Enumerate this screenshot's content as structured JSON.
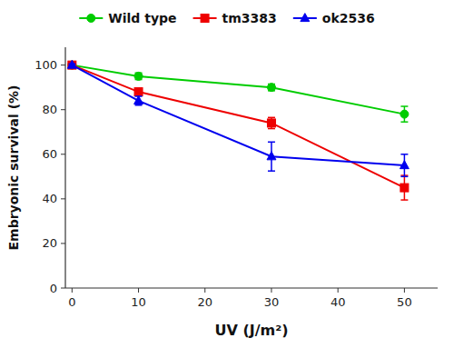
{
  "chart_data": {
    "type": "line",
    "xlabel": "UV (J/m²)",
    "ylabel": "Embryonic survival (%)",
    "x": [
      0,
      10,
      30,
      50
    ],
    "series": [
      {
        "name": "Wild type",
        "color": "#00cc00",
        "marker": "circle",
        "values": [
          100,
          95,
          90,
          78
        ],
        "errors": [
          0.5,
          1.5,
          1.5,
          3.5
        ]
      },
      {
        "name": "tm3383",
        "color": "#ee0000",
        "marker": "square",
        "values": [
          100,
          88,
          74,
          45
        ],
        "errors": [
          0.5,
          1.5,
          2.5,
          5.5
        ]
      },
      {
        "name": "ok2536",
        "color": "#0000ee",
        "marker": "triangle",
        "values": [
          100,
          84,
          59,
          55
        ],
        "errors": [
          0.5,
          2.0,
          6.5,
          5.0
        ]
      }
    ],
    "xlim": [
      -1,
      55
    ],
    "ylim": [
      0,
      108
    ],
    "xticks": [
      0,
      10,
      20,
      30,
      40,
      50
    ],
    "yticks": [
      0,
      20,
      40,
      60,
      80,
      100
    ],
    "grid": false,
    "legend": "top"
  }
}
